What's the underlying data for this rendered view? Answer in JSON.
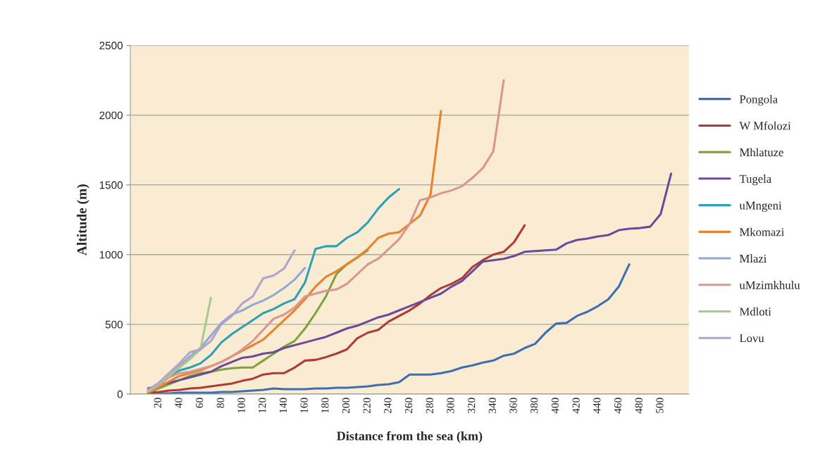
{
  "chart_data": {
    "type": "line",
    "xlabel": "Distance from the sea (km)",
    "ylabel": "Altitude (m)",
    "series": [
      {
        "name": "Pongola",
        "color": "#3e6eb0",
        "x": [
          10,
          20,
          30,
          40,
          50,
          60,
          70,
          80,
          90,
          100,
          110,
          120,
          130,
          140,
          150,
          160,
          170,
          180,
          190,
          200,
          210,
          220,
          230,
          240,
          250,
          260,
          270,
          280,
          290,
          300,
          310,
          320,
          330,
          340,
          350,
          360,
          370,
          380,
          390,
          400,
          410,
          420,
          430,
          440,
          450,
          460,
          470
        ],
        "values": [
          0,
          5,
          5,
          10,
          10,
          10,
          10,
          15,
          15,
          20,
          25,
          30,
          40,
          35,
          35,
          35,
          40,
          40,
          45,
          45,
          50,
          55,
          65,
          70,
          85,
          140,
          140,
          140,
          150,
          165,
          190,
          205,
          225,
          240,
          275,
          290,
          330,
          360,
          440,
          505,
          510,
          560,
          590,
          630,
          680,
          770,
          930
        ]
      },
      {
        "name": "W Mfolozi",
        "color": "#b03a36",
        "x": [
          10,
          20,
          30,
          40,
          50,
          60,
          70,
          80,
          90,
          100,
          110,
          120,
          130,
          140,
          150,
          160,
          170,
          180,
          190,
          200,
          210,
          220,
          230,
          240,
          250,
          260,
          270,
          280,
          290,
          300,
          310,
          320,
          330,
          340,
          350,
          360,
          370
        ],
        "values": [
          10,
          15,
          25,
          30,
          40,
          45,
          55,
          65,
          75,
          95,
          110,
          140,
          150,
          150,
          190,
          240,
          245,
          265,
          290,
          320,
          400,
          440,
          460,
          520,
          560,
          600,
          650,
          710,
          760,
          790,
          830,
          910,
          960,
          1000,
          1020,
          1090,
          1210
        ]
      },
      {
        "name": "Mhlatuze",
        "color": "#7ea23c",
        "x": [
          10,
          20,
          30,
          40,
          50,
          60,
          70,
          80,
          90,
          100,
          110,
          120,
          130,
          140,
          150,
          160,
          170,
          180,
          190,
          200,
          210,
          220
        ],
        "values": [
          10,
          40,
          70,
          100,
          130,
          150,
          160,
          175,
          185,
          190,
          190,
          240,
          290,
          340,
          380,
          470,
          580,
          700,
          860,
          930,
          980,
          1030
        ]
      },
      {
        "name": "Tugela",
        "color": "#6a4a9a",
        "x": [
          10,
          20,
          30,
          40,
          50,
          60,
          70,
          80,
          90,
          100,
          110,
          120,
          130,
          140,
          150,
          160,
          170,
          180,
          190,
          200,
          210,
          220,
          230,
          240,
          250,
          260,
          270,
          280,
          290,
          300,
          310,
          320,
          330,
          340,
          350,
          360,
          370,
          380,
          390,
          400,
          410,
          420,
          430,
          440,
          450,
          460,
          470,
          480,
          490,
          500,
          510
        ],
        "values": [
          40,
          60,
          80,
          100,
          120,
          140,
          160,
          200,
          230,
          260,
          270,
          290,
          300,
          330,
          350,
          370,
          390,
          410,
          440,
          470,
          490,
          520,
          550,
          570,
          600,
          630,
          660,
          690,
          720,
          770,
          810,
          880,
          950,
          960,
          970,
          990,
          1020,
          1025,
          1030,
          1035,
          1080,
          1105,
          1115,
          1130,
          1140,
          1175,
          1185,
          1190,
          1200,
          1290,
          1580
        ]
      },
      {
        "name": "uMngeni",
        "color": "#2f9fb7",
        "x": [
          10,
          20,
          30,
          40,
          50,
          60,
          70,
          80,
          90,
          100,
          110,
          120,
          130,
          140,
          150,
          160,
          170,
          180,
          190,
          200,
          210,
          220,
          230,
          240,
          250
        ],
        "values": [
          15,
          60,
          130,
          170,
          190,
          220,
          280,
          370,
          430,
          480,
          530,
          580,
          610,
          650,
          680,
          800,
          1040,
          1060,
          1060,
          1120,
          1160,
          1230,
          1330,
          1410,
          1470
        ]
      },
      {
        "name": "Mkomazi",
        "color": "#e8822c",
        "x": [
          10,
          20,
          30,
          40,
          50,
          60,
          70,
          80,
          90,
          100,
          110,
          120,
          130,
          140,
          150,
          160,
          170,
          180,
          190,
          200,
          210,
          220,
          230,
          240,
          250,
          260,
          270,
          280,
          290
        ],
        "values": [
          10,
          50,
          90,
          130,
          150,
          170,
          200,
          230,
          270,
          310,
          350,
          390,
          460,
          530,
          600,
          680,
          770,
          840,
          880,
          930,
          980,
          1040,
          1120,
          1150,
          1160,
          1220,
          1280,
          1430,
          2030
        ]
      },
      {
        "name": "Mlazi",
        "color": "#8fa8d4",
        "x": [
          10,
          20,
          30,
          40,
          50,
          60,
          70,
          80,
          90,
          100,
          110,
          120,
          130,
          140,
          150,
          160
        ],
        "values": [
          20,
          60,
          130,
          200,
          270,
          330,
          420,
          510,
          570,
          600,
          640,
          670,
          710,
          760,
          820,
          905
        ]
      },
      {
        "name": "uMzimkhulu",
        "color": "#d99594",
        "x": [
          10,
          20,
          30,
          40,
          50,
          60,
          70,
          80,
          90,
          100,
          110,
          120,
          130,
          140,
          150,
          160,
          170,
          180,
          190,
          200,
          210,
          220,
          230,
          240,
          250,
          260,
          270,
          280,
          290,
          300,
          310,
          320,
          330,
          340,
          350
        ],
        "values": [
          20,
          60,
          120,
          150,
          160,
          180,
          200,
          230,
          270,
          320,
          380,
          460,
          540,
          570,
          620,
          700,
          720,
          740,
          750,
          790,
          860,
          930,
          970,
          1040,
          1110,
          1220,
          1390,
          1410,
          1440,
          1460,
          1490,
          1550,
          1620,
          1740,
          2250
        ]
      },
      {
        "name": "Mdloti",
        "color": "#a9c98a",
        "x": [
          10,
          20,
          30,
          40,
          50,
          60,
          70
        ],
        "values": [
          20,
          70,
          130,
          190,
          250,
          320,
          690
        ]
      },
      {
        "name": "Lovu",
        "color": "#b3a2cf",
        "x": [
          10,
          20,
          30,
          40,
          50,
          60,
          70,
          80,
          90,
          100,
          110,
          120,
          130,
          140,
          150
        ],
        "values": [
          30,
          80,
          150,
          220,
          300,
          320,
          380,
          500,
          560,
          650,
          700,
          830,
          850,
          900,
          1030
        ]
      }
    ],
    "xlim": [
      -7,
      527
    ],
    "xticks": [
      20,
      40,
      60,
      80,
      100,
      120,
      140,
      160,
      180,
      200,
      220,
      240,
      260,
      280,
      300,
      320,
      340,
      360,
      380,
      400,
      420,
      440,
      460,
      480,
      500
    ],
    "ylim": [
      0,
      2500
    ],
    "yticks": [
      0,
      500,
      1000,
      1500,
      2000,
      2500
    ],
    "grid": "y",
    "legend": "right"
  }
}
